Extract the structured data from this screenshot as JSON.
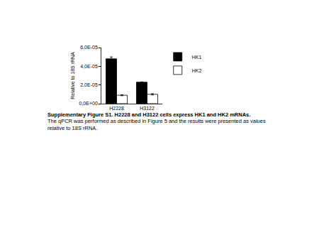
{
  "chart_data": {
    "type": "bar",
    "title": "Supplementary Figure S1. H2228 and H3122 cells express HK1 and HK2 mRNAs.",
    "subtitle": "The qPCR was performed as described in Figure 5 and the results were presented as values relative to 18S rRNA.",
    "y_label": "Relative to 18S rRNA",
    "categories": [
      "H2228",
      "H3122"
    ],
    "series": [
      {
        "name": "HK1",
        "color": "#000000",
        "values": [
          4.8e-05,
          2.3e-05
        ],
        "errors": [
          2e-06,
          3e-07
        ]
      },
      {
        "name": "HK2",
        "color": "#ffffff",
        "values": [
          9e-06,
          1e-05
        ],
        "errors": [
          5e-07,
          7e-07
        ]
      }
    ],
    "ylim": [
      0,
      6e-05
    ],
    "yticks": [
      {
        "value": 0,
        "label": "0,0E+00"
      },
      {
        "value": 2e-05,
        "label": "2,0E-05"
      },
      {
        "value": 4e-05,
        "label": "4,0E-05"
      },
      {
        "value": 6e-05,
        "label": "6,0E-05"
      }
    ],
    "grid": false,
    "legend": "upper right"
  }
}
